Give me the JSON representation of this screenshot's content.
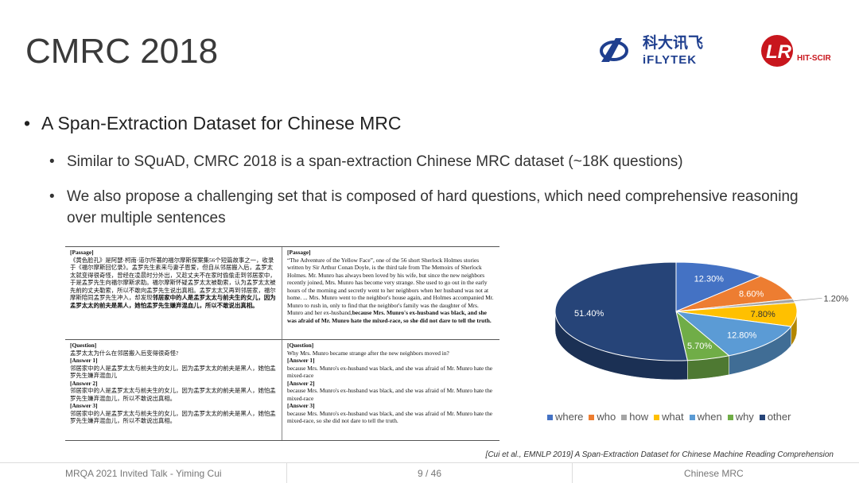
{
  "header": {
    "title": "CMRC 2018",
    "logos": [
      "科大讯飞",
      "iFLYTEK",
      "LR",
      "HIT-SCIR"
    ]
  },
  "bullets": [
    {
      "text": "A Span-Extraction Dataset for Chinese MRC",
      "sub": [
        "Similar to SQuAD, CMRC 2018 is a span-extraction Chinese MRC dataset (~18K questions)",
        "We also propose a challenging set that is composed of hard questions, which need comprehensive reasoning over multiple sentences"
      ]
    }
  ],
  "table": {
    "rows": [
      [
        {
          "label": "[Passage]",
          "text": "《黄色脸孔》是阿瑟·柯南·道尔所著的福尔摩斯探案集56个短篇故事之一，收录于《福尔摩斯回忆录》。孟罗先生素来与妻子恩爱，但自从邻居搬入后，孟罗太太就变得很奇怪，曾经在凌晨时分外出，又趁丈夫不在家时偷偷走到邻居家中，于是孟罗先生向福尔摩斯求助。福尔摩斯怀疑孟罗太太被勒索，认为孟罗太太被先前的丈夫勒索，所以不敢向孟罗先生说出真相。孟罗太太又再到邻居家，福尔摩斯陪同孟罗先生冲入，却发现",
          "bold": "邻居家中的人是孟罗太太与前夫生的女儿，因为孟罗太太的前夫是黑人，她怕孟罗先生嫌弃混血儿，所以不敢说出真相。"
        },
        {
          "label": "[Passage]",
          "text": "“The Adventure of the Yellow Face”, one of the 56 short Sherlock Holmes stories written by Sir Arthur Conan Doyle, is the third tale from The Memoirs of Sherlock Holmes. Mr. Munro has always been loved by his wife, but since the new neighbors recently joined, Mrs. Munro has become very strange. She used to go out in the early hours of the morning and secretly went to her neighbors when her husband was not at home. ... Mrs. Munro went to the neighbor's house again, and Holmes accompanied Mr. Munro to rush in, only to find that the neighbor's family was the daughter of Mrs. Munro and her ex-husband,",
          "bold": "because Mrs. Munro's ex-husband was black, and she was afraid of Mr. Munro hate the mixed-race, so she did not dare to tell the truth."
        }
      ],
      [
        {
          "label": "[Question]",
          "text": "孟罗太太为什么在邻居搬入后变得很奇怪?",
          "answers": [
            {
              "label": "[Answer 1]",
              "text": "邻居家中的人是孟罗太太与前夫生的女儿，因为孟罗太太的前夫是黑人，她怕孟罗先生嫌弃混血儿"
            },
            {
              "label": "[Answer 2]",
              "text": "邻居家中的人是孟罗太太与前夫生的女儿，因为孟罗太太的前夫是黑人，她怕孟罗先生嫌弃混血儿，所以不敢说出真相。"
            },
            {
              "label": "[Answer 3]",
              "text": "邻居家中的人是孟罗太太与前夫生的女儿，因为孟罗太太的前夫是黑人，她怕孟罗先生嫌弃混血儿，所以不敢说出真相。"
            }
          ]
        },
        {
          "label": "[Question]",
          "text": "Why Mrs. Munro became strange after the new neighbors moved in?",
          "answers": [
            {
              "label": "[Answer 1]",
              "text": "because Mrs. Munro's ex-husband was black, and she was afraid of Mr. Munro hate the mixed-race"
            },
            {
              "label": "[Answer 2]",
              "text": "because Mrs. Munro's ex-husband was black, and she was afraid of Mr. Munro hate the mixed-race"
            },
            {
              "label": "[Answer 3]",
              "text": "because Mrs. Munro's ex-husband was black, and she was afraid of Mr. Munro hate the mixed-race, so she did not dare to tell the truth."
            }
          ]
        }
      ]
    ]
  },
  "chart_data": {
    "type": "pie",
    "categories": [
      "where",
      "who",
      "how",
      "what",
      "when",
      "why",
      "other"
    ],
    "values": [
      12.3,
      8.6,
      1.2,
      7.8,
      12.8,
      5.7,
      51.4
    ],
    "value_labels": [
      "12.30%",
      "8.60%",
      "1.20%",
      "7.80%",
      "12.80%",
      "5.70%",
      "51.40%"
    ],
    "colors": [
      "#4472c4",
      "#ed7d31",
      "#a5a5a5",
      "#ffc000",
      "#5b9bd5",
      "#70ad47",
      "#264478"
    ],
    "legend": "bottom"
  },
  "citation": "[Cui et al., EMNLP 2019] A Span-Extraction Dataset for Chinese Machine Reading Comprehension",
  "footer": {
    "left": "MRQA 2021 Invited Talk - Yiming Cui",
    "center": "9 / 46",
    "right": "Chinese MRC"
  }
}
